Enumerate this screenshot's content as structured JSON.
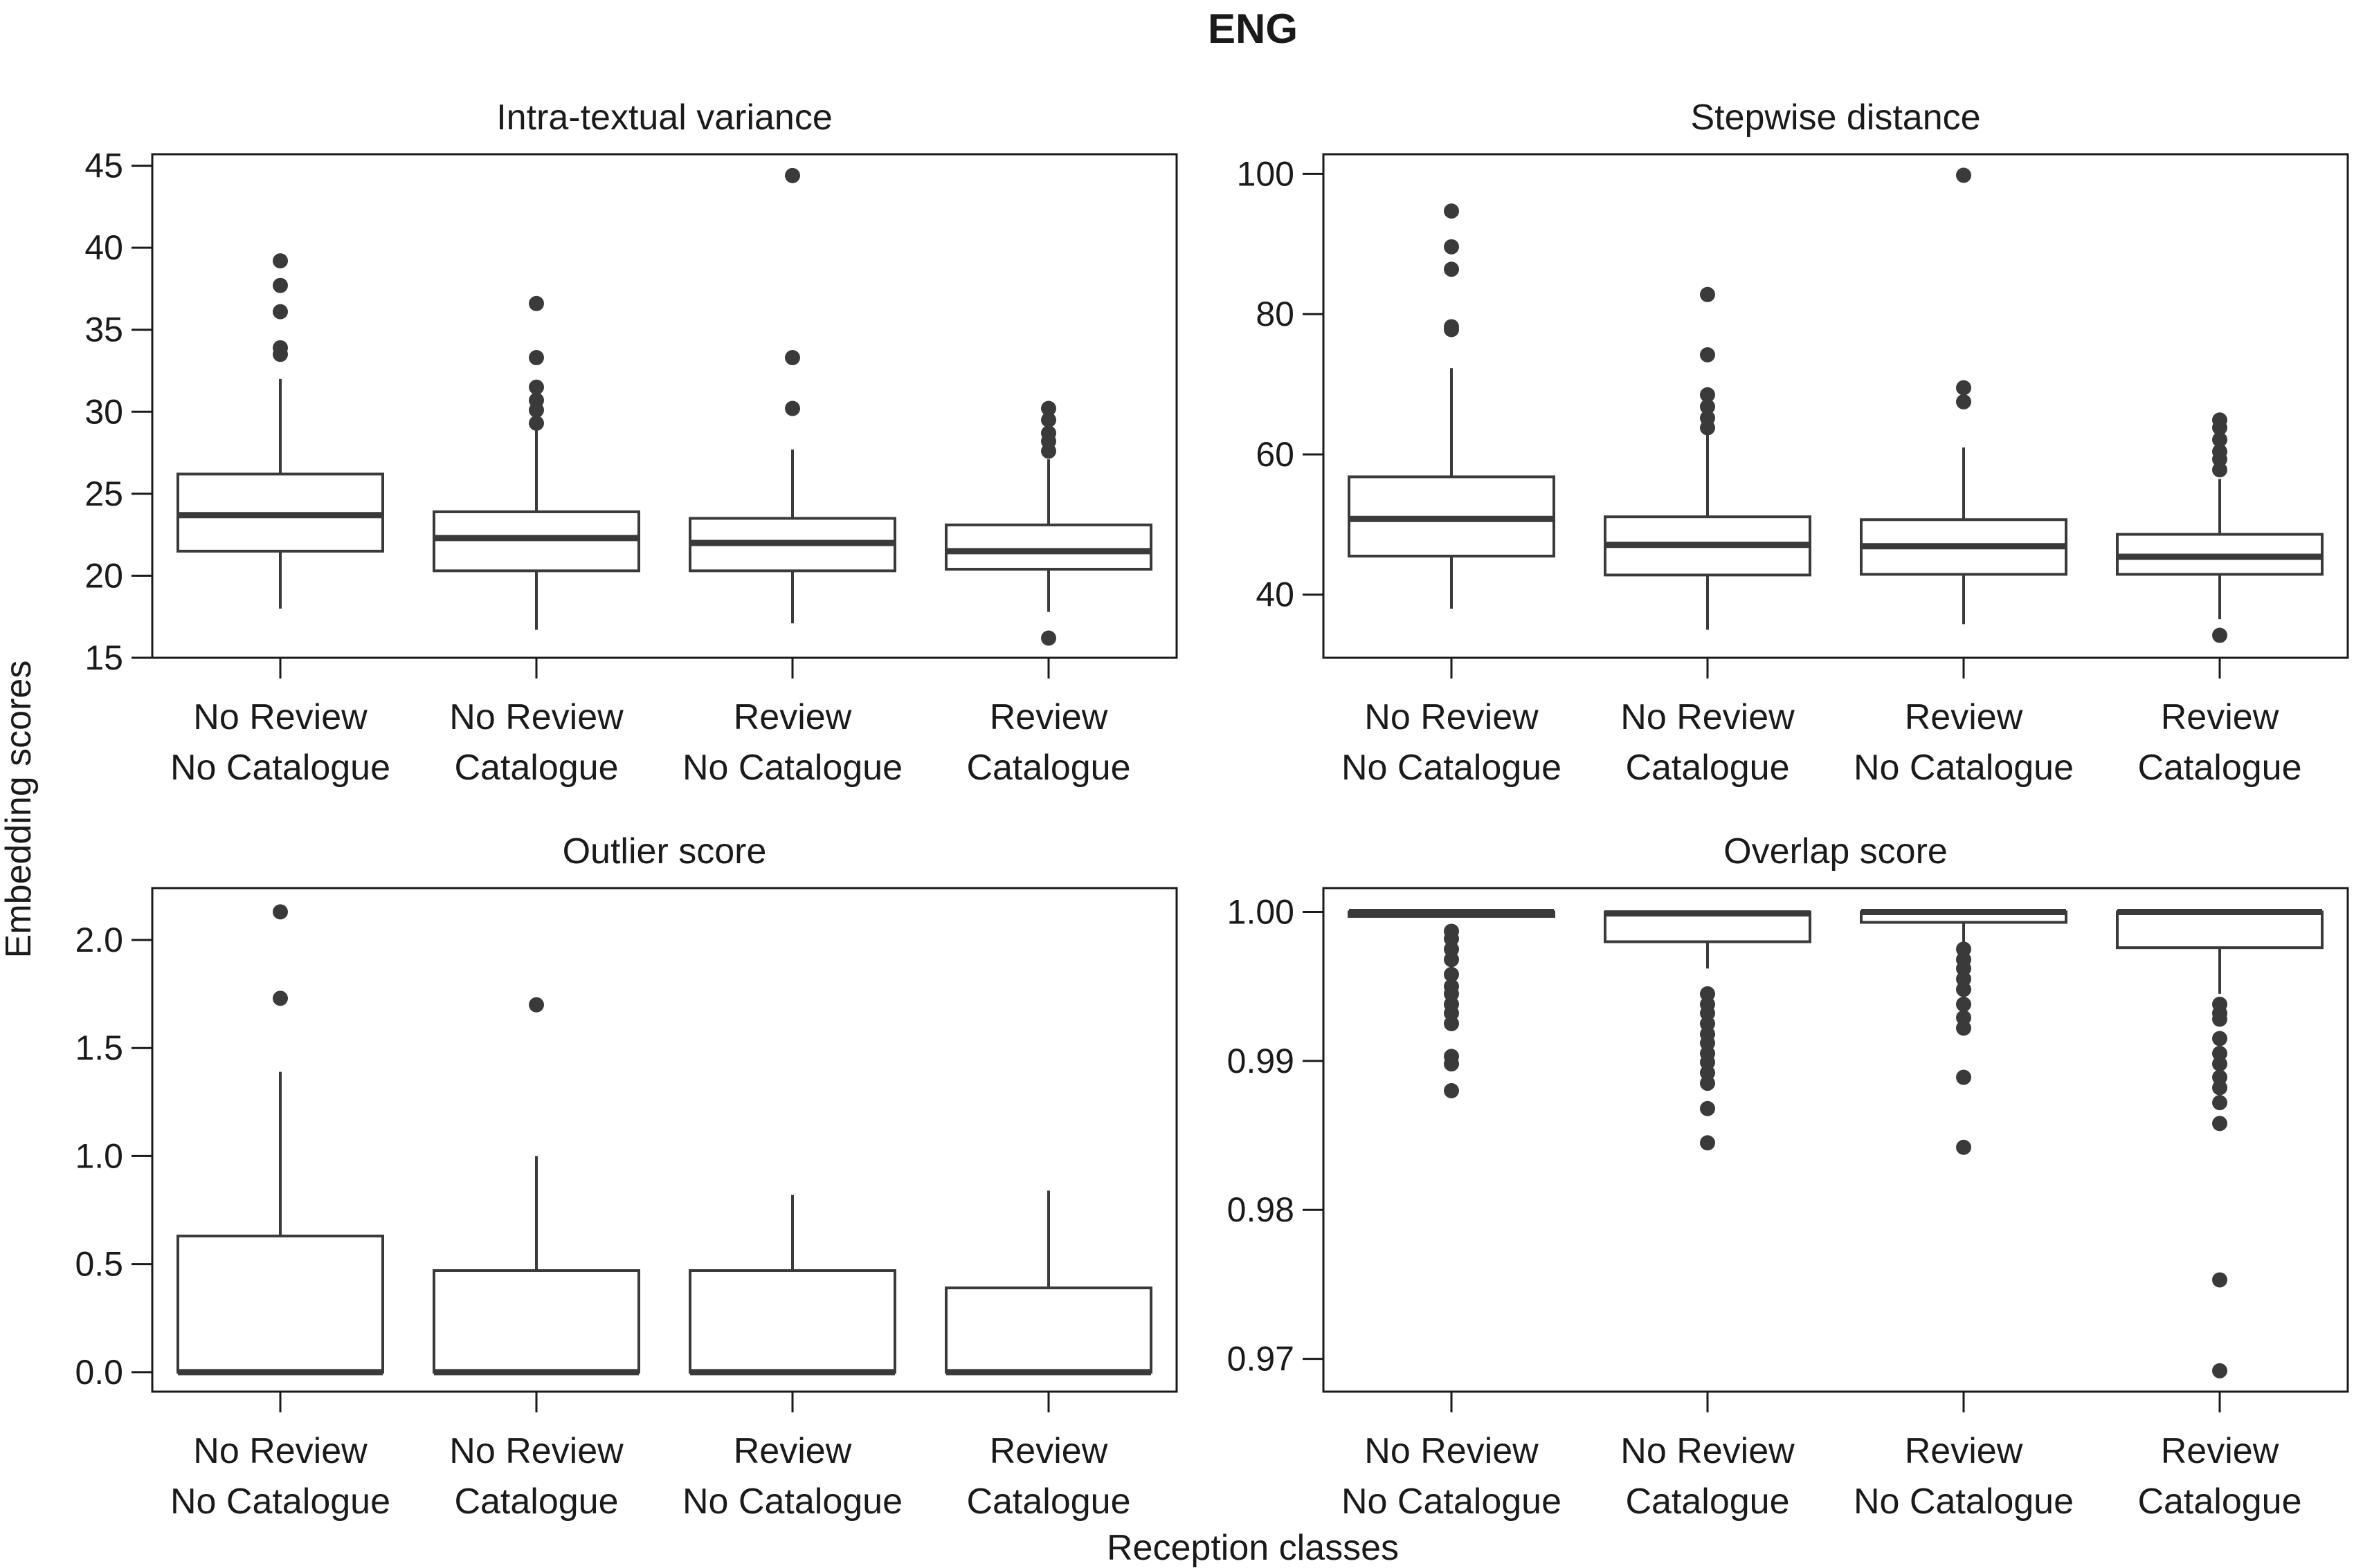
{
  "figure": {
    "title": "ENG",
    "xlabel": "Reception classes",
    "ylabel": "Embedding scores"
  },
  "colors": {
    "box_edge": "#3a3a3a",
    "median": "#3a3a3a",
    "outlier": "#3a3a3a",
    "box_fill": "#ffffff"
  },
  "chart_data": [
    {
      "type": "box",
      "title": "Intra-textual variance",
      "categories": [
        [
          "No Review",
          "No Catalogue"
        ],
        [
          "No Review",
          "Catalogue"
        ],
        [
          "Review",
          "No Catalogue"
        ],
        [
          "Review",
          "Catalogue"
        ]
      ],
      "ylim": [
        15,
        45.7
      ],
      "yticks": [
        15,
        20,
        25,
        30,
        35,
        40,
        45
      ],
      "boxes": [
        {
          "whisker_low": 18.0,
          "q1": 21.5,
          "median": 23.7,
          "q3": 26.2,
          "whisker_high": 32.0,
          "outliers": [
            33.5,
            33.9,
            36.1,
            37.7,
            39.2
          ]
        },
        {
          "whisker_low": 16.7,
          "q1": 20.3,
          "median": 22.3,
          "q3": 23.9,
          "whisker_high": 29.0,
          "outliers": [
            29.3,
            30.1,
            30.7,
            31.5,
            33.3,
            36.6
          ]
        },
        {
          "whisker_low": 17.1,
          "q1": 20.3,
          "median": 22.0,
          "q3": 23.5,
          "whisker_high": 27.7,
          "outliers": [
            30.2,
            33.3,
            44.4
          ]
        },
        {
          "whisker_low": 17.8,
          "q1": 20.4,
          "median": 21.5,
          "q3": 23.1,
          "whisker_high": 27.1,
          "outliers": [
            16.2,
            27.6,
            28.2,
            28.7,
            29.5,
            30.2
          ]
        }
      ]
    },
    {
      "type": "box",
      "title": "Stepwise distance",
      "categories": [
        [
          "No Review",
          "No Catalogue"
        ],
        [
          "No Review",
          "Catalogue"
        ],
        [
          "Review",
          "No Catalogue"
        ],
        [
          "Review",
          "Catalogue"
        ]
      ],
      "ylim": [
        31,
        102.8
      ],
      "yticks": [
        40,
        60,
        80,
        100
      ],
      "boxes": [
        {
          "whisker_low": 38.0,
          "q1": 45.5,
          "median": 50.8,
          "q3": 56.8,
          "whisker_high": 72.3,
          "outliers": [
            77.8,
            78.2,
            86.4,
            89.6,
            94.7
          ]
        },
        {
          "whisker_low": 35.0,
          "q1": 42.8,
          "median": 47.1,
          "q3": 51.1,
          "whisker_high": 63.0,
          "outliers": [
            63.8,
            65.2,
            66.8,
            68.5,
            74.2,
            82.8
          ]
        },
        {
          "whisker_low": 35.8,
          "q1": 42.9,
          "median": 46.9,
          "q3": 50.7,
          "whisker_high": 61.0,
          "outliers": [
            67.5,
            69.5,
            99.8
          ]
        },
        {
          "whisker_low": 36.5,
          "q1": 42.9,
          "median": 45.4,
          "q3": 48.6,
          "whisker_high": 56.5,
          "outliers": [
            34.2,
            57.8,
            59.3,
            60.4,
            62.1,
            63.8,
            64.9
          ]
        }
      ]
    },
    {
      "type": "box",
      "title": "Outlier score",
      "categories": [
        [
          "No Review",
          "No Catalogue"
        ],
        [
          "No Review",
          "Catalogue"
        ],
        [
          "Review",
          "No Catalogue"
        ],
        [
          "Review",
          "Catalogue"
        ]
      ],
      "ylim": [
        -0.09,
        2.24
      ],
      "yticks": [
        0.0,
        0.5,
        1.0,
        1.5,
        2.0
      ],
      "tick_format": 1,
      "boxes": [
        {
          "whisker_low": 0.0,
          "q1": 0.0,
          "median": 0.0,
          "q3": 0.63,
          "whisker_high": 1.39,
          "outliers": [
            1.73,
            2.13
          ]
        },
        {
          "whisker_low": 0.0,
          "q1": 0.0,
          "median": 0.0,
          "q3": 0.47,
          "whisker_high": 1.0,
          "outliers": [
            1.7
          ]
        },
        {
          "whisker_low": 0.0,
          "q1": 0.0,
          "median": 0.0,
          "q3": 0.47,
          "whisker_high": 0.82,
          "outliers": []
        },
        {
          "whisker_low": 0.0,
          "q1": 0.0,
          "median": 0.0,
          "q3": 0.39,
          "whisker_high": 0.84,
          "outliers": []
        }
      ]
    },
    {
      "type": "box",
      "title": "Overlap score",
      "categories": [
        [
          "No Review",
          "No Catalogue"
        ],
        [
          "No Review",
          "Catalogue"
        ],
        [
          "Review",
          "No Catalogue"
        ],
        [
          "Review",
          "Catalogue"
        ]
      ],
      "ylim": [
        0.9678,
        1.0016
      ],
      "yticks": [
        0.97,
        0.98,
        0.99,
        1.0
      ],
      "tick_format": 2,
      "boxes": [
        {
          "whisker_low": 0.9997,
          "q1": 0.9997,
          "median": 1.0,
          "q3": 1.0,
          "whisker_high": 1.0,
          "outliers": [
            0.988,
            0.9898,
            0.9903,
            0.9925,
            0.9932,
            0.9938,
            0.9945,
            0.995,
            0.9958,
            0.9968,
            0.9975,
            0.9982,
            0.9987
          ]
        },
        {
          "whisker_low": 0.9962,
          "q1": 0.998,
          "median": 0.9999,
          "q3": 1.0,
          "whisker_high": 1.0,
          "outliers": [
            0.9845,
            0.9868,
            0.9885,
            0.9892,
            0.9899,
            0.9905,
            0.9912,
            0.9918,
            0.9925,
            0.9932,
            0.9938,
            0.9945
          ]
        },
        {
          "whisker_low": 0.998,
          "q1": 0.9993,
          "median": 1.0,
          "q3": 1.0,
          "whisker_high": 1.0,
          "outliers": [
            0.9842,
            0.9889,
            0.9922,
            0.9929,
            0.9938,
            0.9948,
            0.9955,
            0.9962,
            0.9968,
            0.9975
          ]
        },
        {
          "whisker_low": 0.9945,
          "q1": 0.9976,
          "median": 1.0,
          "q3": 1.0,
          "whisker_high": 1.0,
          "outliers": [
            0.9692,
            0.9753,
            0.9858,
            0.9872,
            0.9882,
            0.9889,
            0.9898,
            0.9905,
            0.9915,
            0.9928,
            0.9932,
            0.9938
          ]
        }
      ]
    }
  ]
}
